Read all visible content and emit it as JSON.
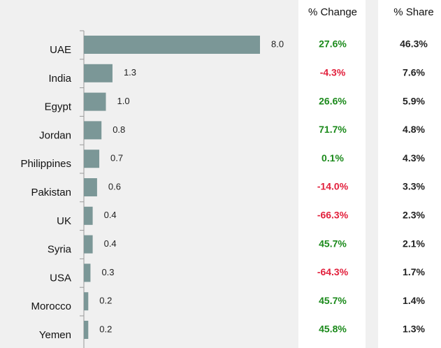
{
  "chart_data": {
    "type": "bar",
    "orientation": "horizontal",
    "color": "#7b9797",
    "categories": [
      "UAE",
      "India",
      "Egypt",
      "Jordan",
      "Philippines",
      "Pakistan",
      "UK",
      "Syria",
      "USA",
      "Morocco",
      "Yemen"
    ],
    "values": [
      8.0,
      1.3,
      1.0,
      0.8,
      0.7,
      0.6,
      0.4,
      0.4,
      0.3,
      0.2,
      0.2
    ],
    "value_labels": [
      "8.0",
      "1.3",
      "1.0",
      "0.8",
      "0.7",
      "0.6",
      "0.4",
      "0.4",
      "0.3",
      "0.2",
      "0.2"
    ],
    "positive_color": "#1b8a1b",
    "negative_color": "#e2203c",
    "columns": [
      {
        "name": "% Change",
        "signed": true,
        "values": [
          27.6,
          -4.3,
          26.6,
          71.7,
          0.1,
          -14.0,
          -66.3,
          45.7,
          -64.3,
          45.7,
          45.8
        ],
        "value_labels": [
          "27.6%",
          "-4.3%",
          "26.6%",
          "71.7%",
          "0.1%",
          "-14.0%",
          "-66.3%",
          "45.7%",
          "-64.3%",
          "45.7%",
          "45.8%"
        ]
      },
      {
        "name": "% Share",
        "signed": false,
        "values": [
          46.3,
          7.6,
          5.9,
          4.8,
          4.3,
          3.3,
          2.3,
          2.1,
          1.7,
          1.4,
          1.3
        ],
        "value_labels": [
          "46.3%",
          "7.6%",
          "5.9%",
          "4.8%",
          "4.3%",
          "3.3%",
          "2.3%",
          "2.1%",
          "1.7%",
          "1.4%",
          "1.3%"
        ]
      }
    ]
  }
}
